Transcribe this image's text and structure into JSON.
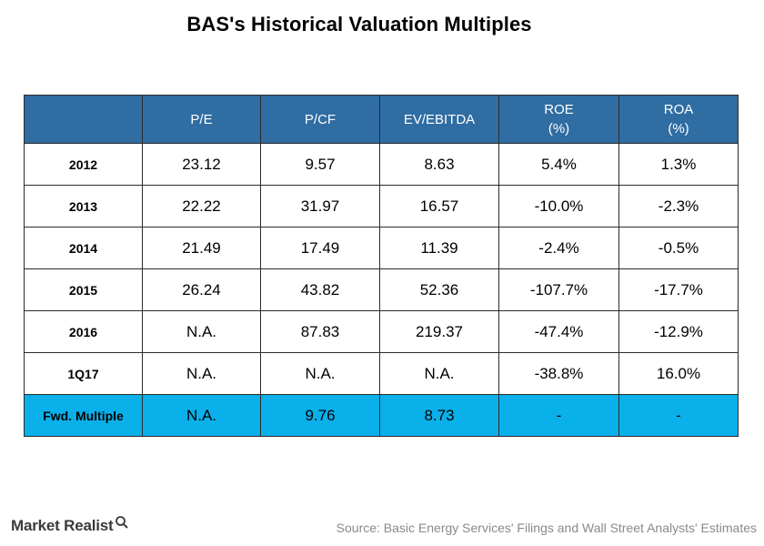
{
  "title": "BAS's Historical Valuation Multiples",
  "table": {
    "headers": [
      {
        "line1": "",
        "line2": ""
      },
      {
        "line1": "P/E",
        "line2": ""
      },
      {
        "line1": "P/CF",
        "line2": ""
      },
      {
        "line1": "EV/EBITDA",
        "line2": ""
      },
      {
        "line1": "ROE",
        "line2": "(%)"
      },
      {
        "line1": "ROA",
        "line2": "(%)"
      }
    ],
    "rows": [
      {
        "label": "2012",
        "pe": "23.12",
        "pcf": "9.57",
        "ev_ebitda": "8.63",
        "roe": "5.4%",
        "roa": "1.3%"
      },
      {
        "label": "2013",
        "pe": "22.22",
        "pcf": "31.97",
        "ev_ebitda": "16.57",
        "roe": "-10.0%",
        "roa": "-2.3%"
      },
      {
        "label": "2014",
        "pe": "21.49",
        "pcf": "17.49",
        "ev_ebitda": "11.39",
        "roe": "-2.4%",
        "roa": "-0.5%"
      },
      {
        "label": "2015",
        "pe": "26.24",
        "pcf": "43.82",
        "ev_ebitda": "52.36",
        "roe": "-107.7%",
        "roa": "-17.7%"
      },
      {
        "label": "2016",
        "pe": "N.A.",
        "pcf": "87.83",
        "ev_ebitda": "219.37",
        "roe": "-47.4%",
        "roa": "-12.9%"
      },
      {
        "label": "1Q17",
        "pe": "N.A.",
        "pcf": "N.A.",
        "ev_ebitda": "N.A.",
        "roe": "-38.8%",
        "roa": "16.0%"
      },
      {
        "label": "Fwd. Multiple",
        "pe": "N.A.",
        "pcf": "9.76",
        "ev_ebitda": "8.73",
        "roe": "-",
        "roa": "-"
      }
    ]
  },
  "footer": {
    "brand": "Market Realist",
    "source": "Source: Basic Energy Services' Filings and Wall Street Analysts' Estimates"
  },
  "colors": {
    "header_bg": "#2f6da3",
    "highlight_row_bg": "#0ab0ea"
  }
}
